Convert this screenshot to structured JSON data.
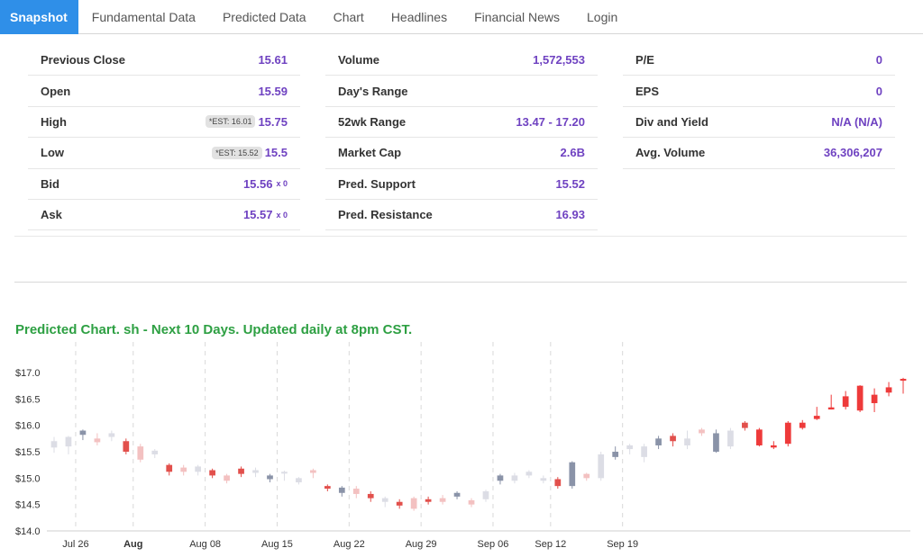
{
  "nav": {
    "tabs": [
      {
        "label": "Snapshot"
      },
      {
        "label": "Fundamental Data"
      },
      {
        "label": "Predicted Data"
      },
      {
        "label": "Chart"
      },
      {
        "label": "Headlines"
      },
      {
        "label": "Financial News"
      },
      {
        "label": "Login"
      }
    ]
  },
  "stats": {
    "col1": [
      {
        "label": "Previous Close",
        "value": "15.61"
      },
      {
        "label": "Open",
        "value": "15.59"
      },
      {
        "label": "High",
        "est": "*EST: 16.01",
        "value": "15.75"
      },
      {
        "label": "Low",
        "est": "*EST: 15.52",
        "value": "15.5"
      },
      {
        "label": "Bid",
        "value": "15.56",
        "suffix": "x 0"
      },
      {
        "label": "Ask",
        "value": "15.57",
        "suffix": "x 0"
      }
    ],
    "col2": [
      {
        "label": "Volume",
        "value": "1,572,553"
      },
      {
        "label": "Day's Range",
        "value": ""
      },
      {
        "label": "52wk Range",
        "value": "13.47 - 17.20"
      },
      {
        "label": "Market Cap",
        "value": "2.6B"
      },
      {
        "label": "Pred. Support",
        "value": "15.52"
      },
      {
        "label": "Pred. Resistance",
        "value": "16.93"
      }
    ],
    "col3": [
      {
        "label": "P/E",
        "value": "0"
      },
      {
        "label": "EPS",
        "value": "0"
      },
      {
        "label": "Div and Yield",
        "value": "N/A (N/A)"
      },
      {
        "label": "Avg. Volume",
        "value": "36,306,207"
      }
    ]
  },
  "chart_title": "Predicted Chart. sh - Next 10 Days. Updated daily at 8pm CST.",
  "colors": {
    "accent": "#2f8fe8",
    "value_text": "#6f42c1",
    "title_green": "#2ea043",
    "hist_up": "#dcdde5",
    "hist_down": "#f3c1c1",
    "hist_up_dark": "#8a93a8",
    "hist_down_dark": "#e2504c",
    "pred": "#ee3a3a"
  },
  "chart_data": {
    "type": "candlestick",
    "title": "Predicted Chart. sh - Next 10 Days. Updated daily at 8pm CST.",
    "y_ticks": [
      "$14.0",
      "$14.5",
      "$15.0",
      "$15.5",
      "$16.0",
      "$16.5",
      "$17.0"
    ],
    "ylim": [
      14.0,
      17.2
    ],
    "x_ticks": [
      {
        "label": "Jul 26",
        "index": 2,
        "bold": false
      },
      {
        "label": "Aug",
        "index": 6,
        "bold": true
      },
      {
        "label": "Aug 08",
        "index": 11,
        "bold": false
      },
      {
        "label": "Aug 15",
        "index": 16,
        "bold": false
      },
      {
        "label": "Aug 22",
        "index": 21,
        "bold": false
      },
      {
        "label": "Aug 29",
        "index": 26,
        "bold": false
      },
      {
        "label": "Sep 06",
        "index": 31,
        "bold": false
      },
      {
        "label": "Sep 12",
        "index": 35,
        "bold": false
      },
      {
        "label": "Sep 19",
        "index": 40,
        "bold": false
      }
    ],
    "grid_indices": [
      2,
      6,
      11,
      16,
      21,
      26,
      31,
      35,
      40
    ],
    "candles": [
      {
        "o": 15.58,
        "c": 15.7,
        "h": 15.78,
        "l": 15.48,
        "t": "hu"
      },
      {
        "o": 15.6,
        "c": 15.78,
        "h": 15.8,
        "l": 15.45,
        "t": "hu"
      },
      {
        "o": 15.82,
        "c": 15.9,
        "h": 15.92,
        "l": 15.72,
        "t": "hud"
      },
      {
        "o": 15.75,
        "c": 15.68,
        "h": 15.85,
        "l": 15.62,
        "t": "hd"
      },
      {
        "o": 15.85,
        "c": 15.78,
        "h": 15.9,
        "l": 15.7,
        "t": "hu"
      },
      {
        "o": 15.7,
        "c": 15.5,
        "h": 15.75,
        "l": 15.45,
        "t": "hdd"
      },
      {
        "o": 15.6,
        "c": 15.35,
        "h": 15.65,
        "l": 15.3,
        "t": "hd"
      },
      {
        "o": 15.45,
        "c": 15.52,
        "h": 15.55,
        "l": 15.38,
        "t": "hu"
      },
      {
        "o": 15.25,
        "c": 15.12,
        "h": 15.28,
        "l": 15.05,
        "t": "hdd"
      },
      {
        "o": 15.2,
        "c": 15.12,
        "h": 15.25,
        "l": 15.05,
        "t": "hd"
      },
      {
        "o": 15.12,
        "c": 15.22,
        "h": 15.25,
        "l": 15.05,
        "t": "hu"
      },
      {
        "o": 15.15,
        "c": 15.05,
        "h": 15.18,
        "l": 15.0,
        "t": "hdd"
      },
      {
        "o": 15.05,
        "c": 14.95,
        "h": 15.08,
        "l": 14.9,
        "t": "hd"
      },
      {
        "o": 15.08,
        "c": 15.18,
        "h": 15.22,
        "l": 15.02,
        "t": "hdd"
      },
      {
        "o": 15.1,
        "c": 15.15,
        "h": 15.2,
        "l": 15.02,
        "t": "hu"
      },
      {
        "o": 14.98,
        "c": 15.05,
        "h": 15.08,
        "l": 14.92,
        "t": "hud"
      },
      {
        "o": 15.1,
        "c": 15.12,
        "h": 15.14,
        "l": 14.95,
        "t": "hu"
      },
      {
        "o": 15.0,
        "c": 14.92,
        "h": 15.02,
        "l": 14.88,
        "t": "hu"
      },
      {
        "o": 15.15,
        "c": 15.1,
        "h": 15.18,
        "l": 15.0,
        "t": "hd"
      },
      {
        "o": 14.85,
        "c": 14.8,
        "h": 14.88,
        "l": 14.75,
        "t": "hdd"
      },
      {
        "o": 14.72,
        "c": 14.82,
        "h": 14.85,
        "l": 14.65,
        "t": "hud"
      },
      {
        "o": 14.8,
        "c": 14.7,
        "h": 14.85,
        "l": 14.62,
        "t": "hd"
      },
      {
        "o": 14.7,
        "c": 14.62,
        "h": 14.75,
        "l": 14.55,
        "t": "hdd"
      },
      {
        "o": 14.55,
        "c": 14.62,
        "h": 14.65,
        "l": 14.45,
        "t": "hu"
      },
      {
        "o": 14.55,
        "c": 14.48,
        "h": 14.6,
        "l": 14.42,
        "t": "hdd"
      },
      {
        "o": 14.62,
        "c": 14.42,
        "h": 14.65,
        "l": 14.38,
        "t": "hd"
      },
      {
        "o": 14.6,
        "c": 14.55,
        "h": 14.65,
        "l": 14.5,
        "t": "hdd"
      },
      {
        "o": 14.62,
        "c": 14.55,
        "h": 14.68,
        "l": 14.5,
        "t": "hd"
      },
      {
        "o": 14.65,
        "c": 14.72,
        "h": 14.75,
        "l": 14.6,
        "t": "hud"
      },
      {
        "o": 14.58,
        "c": 14.5,
        "h": 14.62,
        "l": 14.45,
        "t": "hd"
      },
      {
        "o": 14.6,
        "c": 14.75,
        "h": 14.78,
        "l": 14.55,
        "t": "hu"
      },
      {
        "o": 14.95,
        "c": 15.05,
        "h": 15.08,
        "l": 14.88,
        "t": "hud"
      },
      {
        "o": 14.95,
        "c": 15.05,
        "h": 15.1,
        "l": 14.9,
        "t": "hu"
      },
      {
        "o": 15.05,
        "c": 15.12,
        "h": 15.15,
        "l": 15.0,
        "t": "hu"
      },
      {
        "o": 15.0,
        "c": 14.95,
        "h": 15.05,
        "l": 14.9,
        "t": "hu"
      },
      {
        "o": 14.98,
        "c": 14.85,
        "h": 15.02,
        "l": 14.8,
        "t": "hdd"
      },
      {
        "o": 14.85,
        "c": 15.3,
        "h": 15.32,
        "l": 14.8,
        "t": "hud"
      },
      {
        "o": 15.0,
        "c": 15.08,
        "h": 15.1,
        "l": 14.95,
        "t": "hd"
      },
      {
        "o": 15.0,
        "c": 15.45,
        "h": 15.5,
        "l": 14.95,
        "t": "hu"
      },
      {
        "o": 15.4,
        "c": 15.5,
        "h": 15.6,
        "l": 15.35,
        "t": "hud"
      },
      {
        "o": 15.55,
        "c": 15.62,
        "h": 15.65,
        "l": 15.45,
        "t": "hu"
      },
      {
        "o": 15.4,
        "c": 15.6,
        "h": 15.65,
        "l": 15.3,
        "t": "hu"
      },
      {
        "o": 15.62,
        "c": 15.75,
        "h": 15.8,
        "l": 15.55,
        "t": "hud"
      },
      {
        "o": 15.7,
        "c": 15.8,
        "h": 15.85,
        "l": 15.6,
        "t": "hdd"
      },
      {
        "o": 15.75,
        "c": 15.62,
        "h": 15.9,
        "l": 15.55,
        "t": "hu"
      },
      {
        "o": 15.85,
        "c": 15.92,
        "h": 15.95,
        "l": 15.8,
        "t": "hd"
      },
      {
        "o": 15.5,
        "c": 15.85,
        "h": 15.92,
        "l": 15.48,
        "t": "hud"
      },
      {
        "o": 15.6,
        "c": 15.9,
        "h": 15.95,
        "l": 15.55,
        "t": "hu"
      },
      {
        "o": 15.95,
        "c": 16.05,
        "h": 16.08,
        "l": 15.9,
        "t": "hdd"
      },
      {
        "o": 15.62,
        "c": 15.92,
        "h": 15.95,
        "l": 15.6,
        "t": "p"
      },
      {
        "o": 15.58,
        "c": 15.62,
        "h": 15.7,
        "l": 15.55,
        "t": "p"
      },
      {
        "o": 15.65,
        "c": 16.05,
        "h": 16.08,
        "l": 15.6,
        "t": "p"
      },
      {
        "o": 15.95,
        "c": 16.05,
        "h": 16.1,
        "l": 15.92,
        "t": "p"
      },
      {
        "o": 16.12,
        "c": 16.18,
        "h": 16.35,
        "l": 16.1,
        "t": "p"
      },
      {
        "o": 16.3,
        "c": 16.34,
        "h": 16.58,
        "l": 16.3,
        "t": "p"
      },
      {
        "o": 16.35,
        "c": 16.55,
        "h": 16.65,
        "l": 16.3,
        "t": "p"
      },
      {
        "o": 16.28,
        "c": 16.75,
        "h": 16.76,
        "l": 16.25,
        "t": "p"
      },
      {
        "o": 16.42,
        "c": 16.58,
        "h": 16.7,
        "l": 16.25,
        "t": "p"
      },
      {
        "o": 16.62,
        "c": 16.72,
        "h": 16.82,
        "l": 16.55,
        "t": "p"
      },
      {
        "o": 16.85,
        "c": 16.88,
        "h": 16.9,
        "l": 16.6,
        "t": "p"
      }
    ]
  }
}
